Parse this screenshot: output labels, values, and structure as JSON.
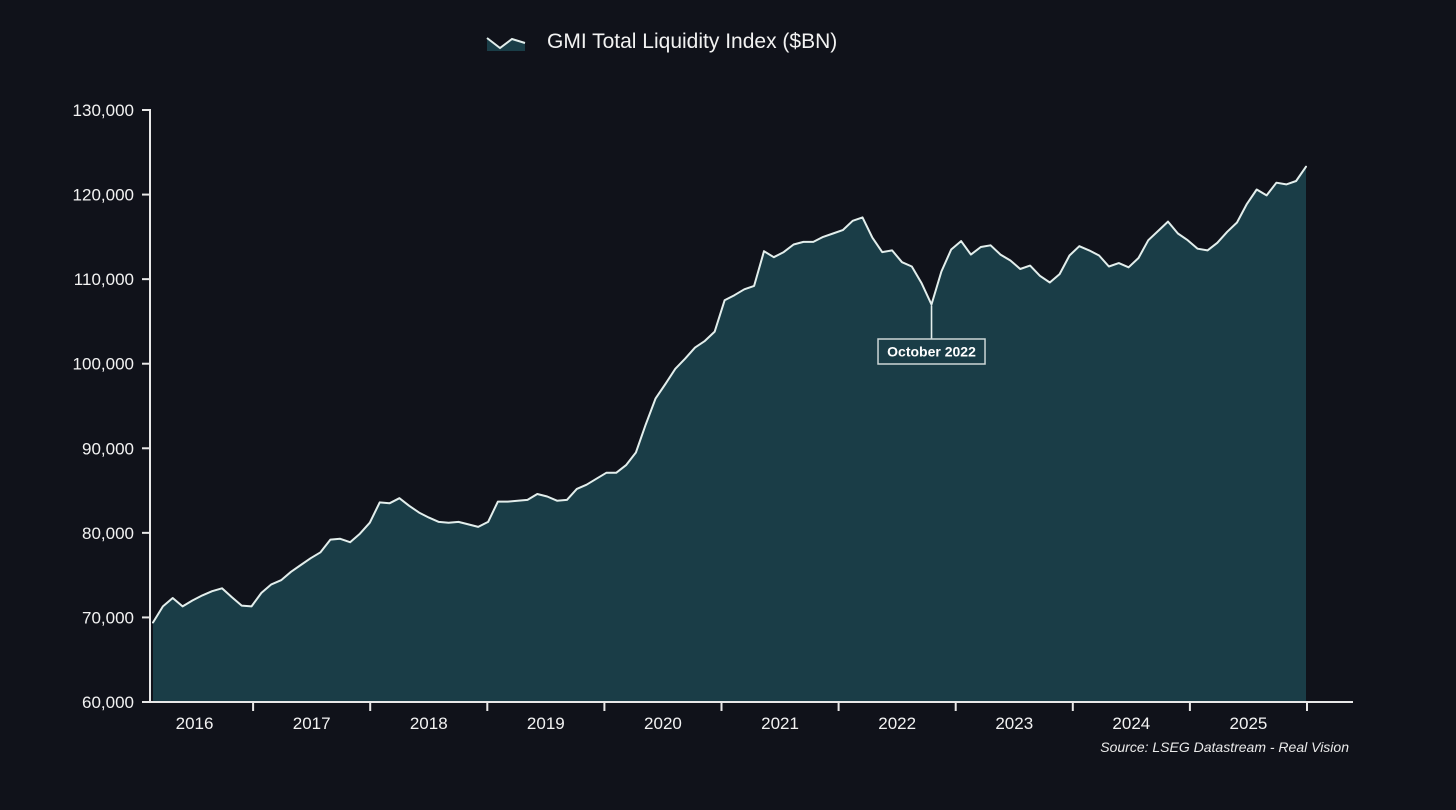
{
  "legend": {
    "label": "GMI Total Liquidity Index ($BN)",
    "icon": "area-chart-icon"
  },
  "annotation": {
    "label": "October 2022",
    "date": "2022-10",
    "value": 107000
  },
  "source_note": "Source: LSEG Datastream - Real Vision",
  "axes": {
    "y_tick_labels": [
      "130,000",
      "120,000",
      "110,000",
      "100,000",
      "90,000",
      "80,000",
      "70,000",
      "60,000"
    ],
    "y_tick_values": [
      130000,
      120000,
      110000,
      100000,
      90000,
      80000,
      70000,
      60000
    ],
    "x_tick_labels": [
      "2016",
      "2017",
      "2018",
      "2019",
      "2020",
      "2021",
      "2022",
      "2023",
      "2024",
      "2025"
    ]
  },
  "colors": {
    "background": "#10121a",
    "area_fill": "#1a3d47",
    "line": "#e3eeec",
    "axis": "#e8e8e8",
    "text": "#f2f2f2",
    "annotation_border": "#ccd6d6",
    "annotation_text": "#ffffff"
  },
  "chart_data": {
    "type": "area",
    "title": "GMI Total Liquidity Index ($BN)",
    "ylabel": "",
    "xlabel": "",
    "ylim": [
      60000,
      130000
    ],
    "grid": false,
    "legend_position": "top-center",
    "x": [
      "2016-03",
      "2016-04",
      "2016-05",
      "2016-06",
      "2016-07",
      "2016-08",
      "2016-09",
      "2016-10",
      "2016-11",
      "2016-12",
      "2017-01",
      "2017-02",
      "2017-03",
      "2017-04",
      "2017-05",
      "2017-06",
      "2017-07",
      "2017-08",
      "2017-09",
      "2017-10",
      "2017-11",
      "2017-12",
      "2018-01",
      "2018-02",
      "2018-03",
      "2018-04",
      "2018-05",
      "2018-06",
      "2018-07",
      "2018-08",
      "2018-09",
      "2018-10",
      "2018-11",
      "2018-12",
      "2019-01",
      "2019-02",
      "2019-03",
      "2019-04",
      "2019-05",
      "2019-06",
      "2019-07",
      "2019-08",
      "2019-09",
      "2019-10",
      "2019-11",
      "2019-12",
      "2020-01",
      "2020-02",
      "2020-03",
      "2020-04",
      "2020-05",
      "2020-06",
      "2020-07",
      "2020-08",
      "2020-09",
      "2020-10",
      "2020-11",
      "2020-12",
      "2021-01",
      "2021-02",
      "2021-03",
      "2021-04",
      "2021-05",
      "2021-06",
      "2021-07",
      "2021-08",
      "2021-09",
      "2021-10",
      "2021-11",
      "2021-12",
      "2022-01",
      "2022-02",
      "2022-03",
      "2022-04",
      "2022-05",
      "2022-06",
      "2022-07",
      "2022-08",
      "2022-09",
      "2022-10",
      "2022-11",
      "2022-12",
      "2023-01",
      "2023-02",
      "2023-03",
      "2023-04",
      "2023-05",
      "2023-06",
      "2023-07",
      "2023-08",
      "2023-09",
      "2023-10",
      "2023-11",
      "2023-12",
      "2024-01",
      "2024-02",
      "2024-03",
      "2024-04",
      "2024-05",
      "2024-06",
      "2024-07",
      "2024-08",
      "2024-09",
      "2024-10",
      "2024-11",
      "2024-12",
      "2025-01",
      "2025-02",
      "2025-03",
      "2025-04",
      "2025-05",
      "2025-06",
      "2025-07",
      "2025-08",
      "2025-09",
      "2025-10",
      "2025-11",
      "2025-12"
    ],
    "values": [
      69400,
      71300,
      72300,
      71300,
      72000,
      72600,
      73100,
      73450,
      72400,
      71400,
      71300,
      72900,
      73900,
      74400,
      75400,
      76200,
      77000,
      77700,
      79200,
      79300,
      78900,
      79900,
      81200,
      83600,
      83500,
      84100,
      83200,
      82400,
      81800,
      81300,
      81200,
      81300,
      81000,
      80700,
      81300,
      83700,
      83700,
      83800,
      83900,
      84600,
      84300,
      83800,
      83900,
      85200,
      85700,
      86400,
      87100,
      87100,
      88000,
      89500,
      92800,
      95900,
      97600,
      99400,
      100600,
      101900,
      102700,
      103800,
      107500,
      108100,
      108800,
      109200,
      113300,
      112600,
      113200,
      114100,
      114400,
      114400,
      115000,
      115400,
      115800,
      116900,
      117300,
      114900,
      113200,
      113400,
      112000,
      111500,
      109500,
      107000,
      110900,
      113500,
      114500,
      112900,
      113800,
      114000,
      112900,
      112200,
      111200,
      111600,
      110400,
      109600,
      110600,
      112800,
      113900,
      113400,
      112800,
      111500,
      111900,
      111400,
      112500,
      114600,
      115700,
      116800,
      115400,
      114600,
      113600,
      113400,
      114300,
      115600,
      116700,
      118900,
      120600,
      119900,
      121400,
      121200,
      121600,
      123300
    ],
    "annotations": [
      {
        "text": "October 2022",
        "x": "2022-10",
        "y": 107000
      }
    ]
  }
}
